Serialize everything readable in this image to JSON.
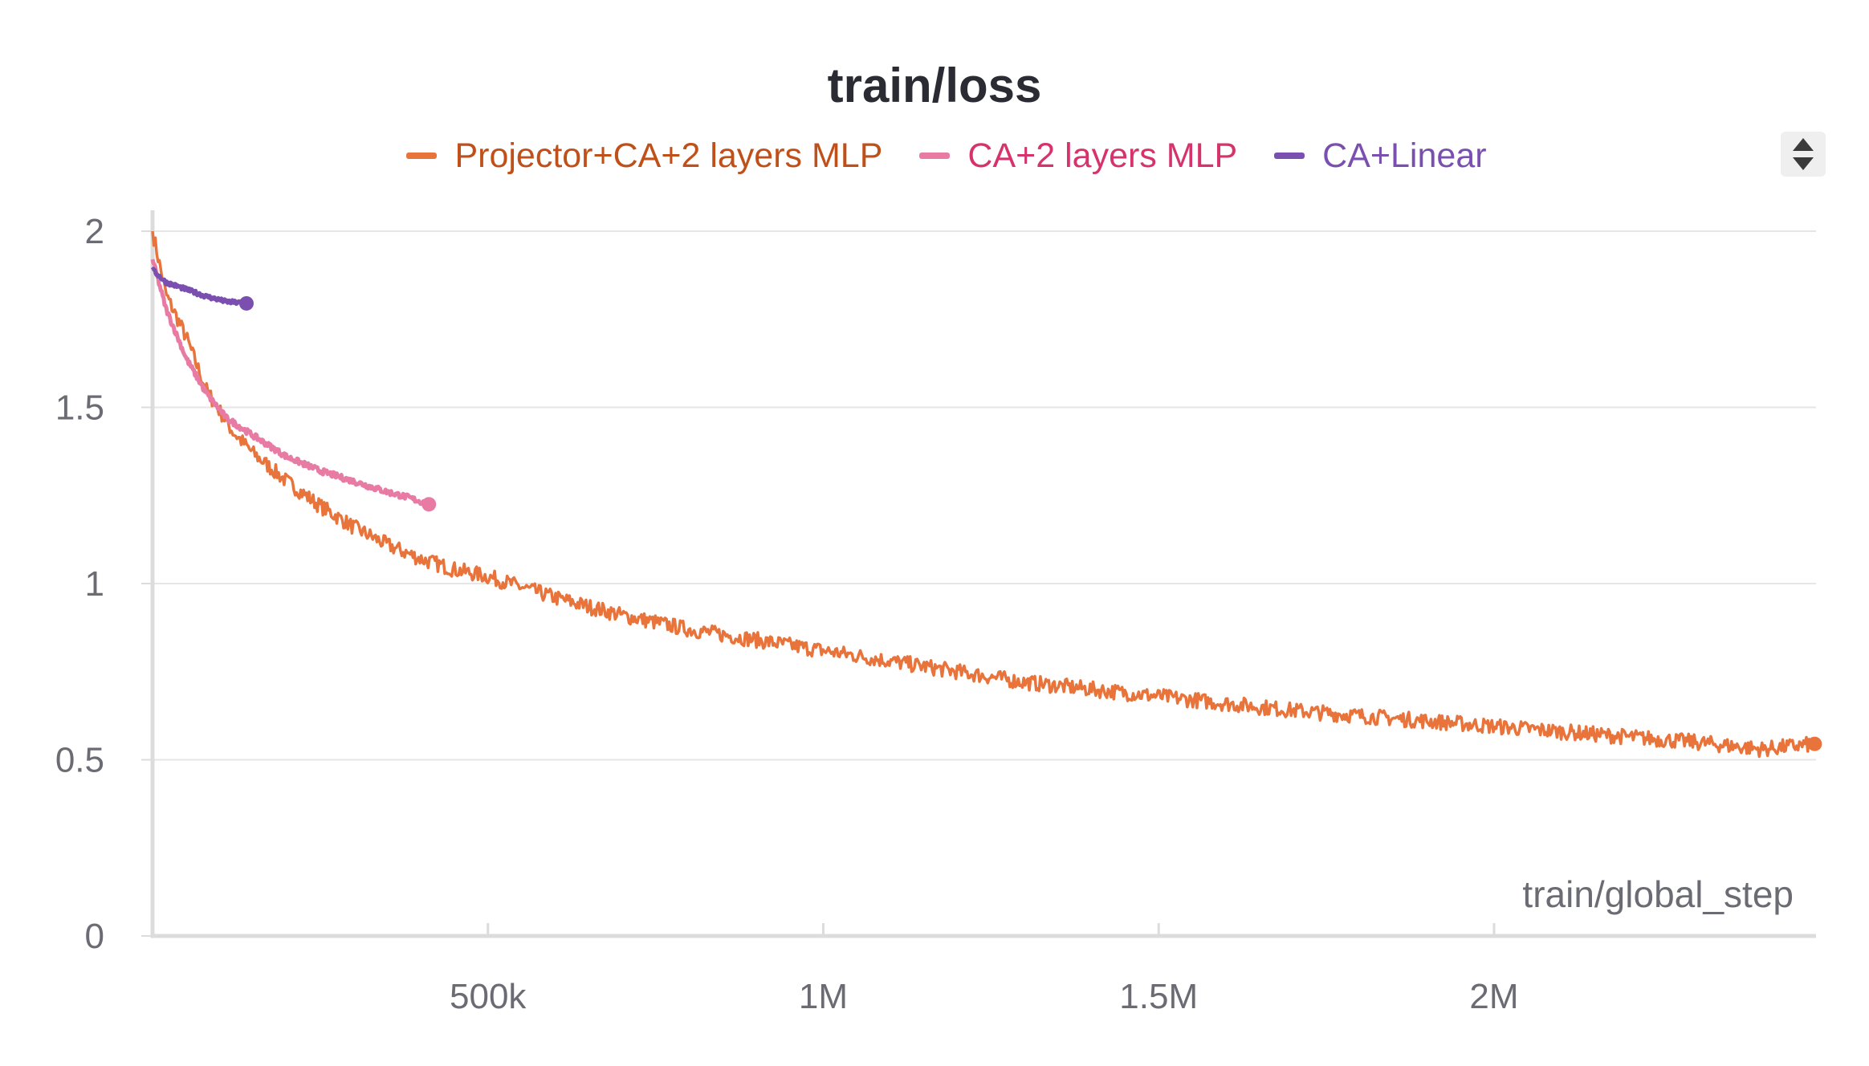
{
  "chart_data": {
    "type": "line",
    "title": "train/loss",
    "xlabel": "train/global_step",
    "ylabel": "",
    "xlim": [
      0,
      2480000
    ],
    "ylim": [
      0,
      2.0
    ],
    "x_ticks": [
      {
        "value": 500000,
        "label": "500k"
      },
      {
        "value": 1000000,
        "label": "1M"
      },
      {
        "value": 1500000,
        "label": "1.5M"
      },
      {
        "value": 2000000,
        "label": "2M"
      }
    ],
    "y_ticks": [
      {
        "value": 0,
        "label": "0"
      },
      {
        "value": 0.5,
        "label": "0.5"
      },
      {
        "value": 1,
        "label": "1"
      },
      {
        "value": 1.5,
        "label": "1.5"
      },
      {
        "value": 2,
        "label": "2"
      }
    ],
    "grid": true,
    "legend_position": "top-center",
    "series": [
      {
        "name": "Projector+CA+2 layers MLP",
        "color": "#e8743b",
        "label_color": "#c0501a",
        "x": [
          0,
          20000,
          50000,
          80000,
          120000,
          150000,
          200000,
          250000,
          300000,
          350000,
          400000,
          450000,
          500000,
          600000,
          700000,
          800000,
          900000,
          1000000,
          1100000,
          1200000,
          1300000,
          1400000,
          1500000,
          1600000,
          1700000,
          1800000,
          1900000,
          2000000,
          2100000,
          2200000,
          2300000,
          2400000,
          2478000
        ],
        "values": [
          2.0,
          1.82,
          1.7,
          1.55,
          1.43,
          1.37,
          1.29,
          1.22,
          1.16,
          1.11,
          1.07,
          1.04,
          1.02,
          0.96,
          0.91,
          0.87,
          0.84,
          0.81,
          0.78,
          0.75,
          0.72,
          0.7,
          0.68,
          0.66,
          0.64,
          0.625,
          0.61,
          0.595,
          0.58,
          0.565,
          0.55,
          0.53,
          0.545
        ]
      },
      {
        "name": "CA+2 layers MLP",
        "color": "#e87ba4",
        "label_color": "#d6336c",
        "x": [
          0,
          20000,
          50000,
          80000,
          110000,
          150000,
          200000,
          250000,
          300000,
          350000,
          380000,
          412000
        ],
        "values": [
          1.92,
          1.78,
          1.64,
          1.54,
          1.47,
          1.42,
          1.36,
          1.32,
          1.29,
          1.26,
          1.245,
          1.225
        ]
      },
      {
        "name": "CA+Linear",
        "color": "#7b4fb0",
        "label_color": "#7b4fb0",
        "x": [
          0,
          20000,
          50000,
          80000,
          110000,
          140000
        ],
        "values": [
          1.89,
          1.855,
          1.835,
          1.815,
          1.8,
          1.795
        ]
      }
    ]
  }
}
